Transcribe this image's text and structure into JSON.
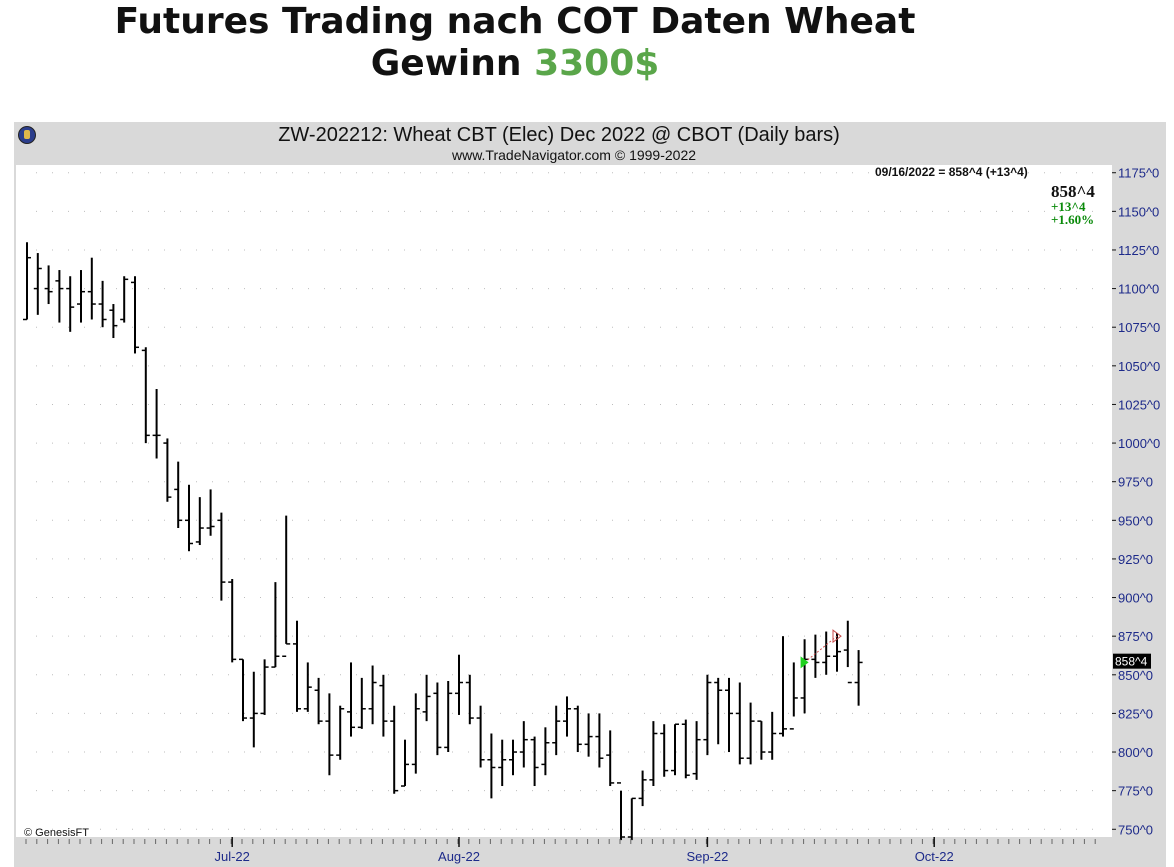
{
  "header": {
    "line1": "Futures Trading nach COT Daten Wheat",
    "line2_prefix": "Gewinn",
    "line2_amount": "3300$"
  },
  "chart_data": {
    "type": "ohlc",
    "title": "ZW-202212:  Wheat CBT (Elec) Dec 2022 @ CBOT  (Daily bars)",
    "subtitle": "www.TradeNavigator.com © 1999-2022",
    "info": {
      "summary": "09/16/2022 = 858^4 (+13^4)",
      "last": "858^4",
      "change": "+13^4",
      "change_pct": "+1.60%"
    },
    "last_price_label": "858^4",
    "last_price_value": 858.5,
    "credit": "© GenesisFT",
    "ylim": [
      745,
      1180
    ],
    "y_ticks": [
      {
        "value": 1175,
        "label": "1175^0"
      },
      {
        "value": 1150,
        "label": "1150^0"
      },
      {
        "value": 1125,
        "label": "1125^0"
      },
      {
        "value": 1100,
        "label": "1100^0"
      },
      {
        "value": 1075,
        "label": "1075^0"
      },
      {
        "value": 1050,
        "label": "1050^0"
      },
      {
        "value": 1025,
        "label": "1025^0"
      },
      {
        "value": 1000,
        "label": "1000^0"
      },
      {
        "value": 975,
        "label": "975^0"
      },
      {
        "value": 950,
        "label": "950^0"
      },
      {
        "value": 925,
        "label": "925^0"
      },
      {
        "value": 900,
        "label": "900^0"
      },
      {
        "value": 875,
        "label": "875^0"
      },
      {
        "value": 850,
        "label": "850^0"
      },
      {
        "value": 825,
        "label": "825^0"
      },
      {
        "value": 800,
        "label": "800^0"
      },
      {
        "value": 775,
        "label": "775^0"
      },
      {
        "value": 750,
        "label": "750^0"
      }
    ],
    "x_ticks": [
      {
        "bar": 19,
        "label": "Jul-22"
      },
      {
        "bar": 40,
        "label": "Aug-22"
      },
      {
        "bar": 63,
        "label": "Sep-22"
      },
      {
        "bar": 84,
        "label": "Oct-22"
      }
    ],
    "bars": [
      [
        1080,
        1130,
        1080,
        1120
      ],
      [
        1100,
        1123,
        1083,
        1113
      ],
      [
        1100,
        1115,
        1090,
        1098
      ],
      [
        1105,
        1112,
        1078,
        1100
      ],
      [
        1100,
        1108,
        1072,
        1088
      ],
      [
        1090,
        1112,
        1078,
        1098
      ],
      [
        1098,
        1120,
        1080,
        1090
      ],
      [
        1090,
        1105,
        1075,
        1080
      ],
      [
        1086,
        1090,
        1068,
        1076
      ],
      [
        1080,
        1108,
        1078,
        1106
      ],
      [
        1104,
        1108,
        1058,
        1062
      ],
      [
        1060,
        1062,
        1000,
        1005
      ],
      [
        1005,
        1035,
        990,
        1005
      ],
      [
        1000,
        1003,
        962,
        965
      ],
      [
        970,
        988,
        945,
        950
      ],
      [
        950,
        973,
        930,
        935
      ],
      [
        936,
        965,
        934,
        945
      ],
      [
        945,
        970,
        940,
        946
      ],
      [
        950,
        955,
        898,
        910
      ],
      [
        910,
        912,
        858,
        860
      ],
      [
        860,
        860,
        820,
        822
      ],
      [
        822,
        852,
        803,
        825
      ],
      [
        825,
        860,
        824,
        855
      ],
      [
        855,
        910,
        855,
        862
      ],
      [
        862,
        953,
        870,
        870
      ],
      [
        870,
        885,
        826,
        828
      ],
      [
        828,
        858,
        826,
        842
      ],
      [
        840,
        848,
        818,
        820
      ],
      [
        820,
        838,
        785,
        798
      ],
      [
        798,
        830,
        795,
        828
      ],
      [
        826,
        858,
        810,
        816
      ],
      [
        816,
        848,
        815,
        828
      ],
      [
        828,
        856,
        818,
        845
      ],
      [
        843,
        850,
        810,
        820
      ],
      [
        820,
        830,
        773,
        775
      ],
      [
        778,
        808,
        778,
        792
      ],
      [
        792,
        838,
        786,
        828
      ],
      [
        826,
        850,
        820,
        836
      ],
      [
        838,
        845,
        798,
        803
      ],
      [
        803,
        846,
        800,
        838
      ],
      [
        838,
        863,
        824,
        845
      ],
      [
        845,
        850,
        818,
        822
      ],
      [
        822,
        830,
        790,
        795
      ],
      [
        795,
        812,
        770,
        790
      ],
      [
        790,
        808,
        778,
        795
      ],
      [
        795,
        808,
        785,
        800
      ],
      [
        800,
        820,
        790,
        808
      ],
      [
        808,
        810,
        778,
        790
      ],
      [
        792,
        816,
        785,
        806
      ],
      [
        806,
        830,
        798,
        820
      ],
      [
        820,
        836,
        810,
        828
      ],
      [
        828,
        830,
        800,
        805
      ],
      [
        805,
        825,
        797,
        810
      ],
      [
        810,
        825,
        790,
        796
      ],
      [
        798,
        814,
        778,
        780
      ],
      [
        780,
        775,
        743,
        745
      ],
      [
        745,
        770,
        743,
        770
      ],
      [
        770,
        788,
        765,
        782
      ],
      [
        782,
        820,
        778,
        812
      ],
      [
        812,
        818,
        784,
        788
      ],
      [
        788,
        818,
        785,
        818
      ],
      [
        818,
        821,
        783,
        785
      ],
      [
        786,
        820,
        782,
        808
      ],
      [
        808,
        850,
        798,
        845
      ],
      [
        845,
        848,
        805,
        840
      ],
      [
        840,
        848,
        800,
        825
      ],
      [
        825,
        845,
        792,
        796
      ],
      [
        796,
        832,
        792,
        820
      ],
      [
        820,
        820,
        795,
        800
      ],
      [
        800,
        826,
        795,
        812
      ],
      [
        812,
        875,
        810,
        815
      ],
      [
        815,
        858,
        823,
        835
      ],
      [
        835,
        873,
        825,
        860
      ],
      [
        860,
        876,
        848,
        858
      ],
      [
        858,
        878,
        850,
        862
      ],
      [
        862,
        877,
        852,
        865
      ],
      [
        866,
        885,
        855,
        845
      ],
      [
        845,
        866,
        830,
        858
      ]
    ],
    "trade": {
      "entry_bar": 72,
      "entry_price": 858,
      "exit_bar": 75,
      "exit_price": 875,
      "colors": {
        "entry": "#1fd11f",
        "exit": "#c84a4a",
        "line": "#d05050"
      }
    },
    "colors": {
      "bars": "#000000",
      "axis_labels": "#1d2a8a",
      "frame": "#d9d9d9",
      "grid": "#bdbdbd"
    }
  }
}
